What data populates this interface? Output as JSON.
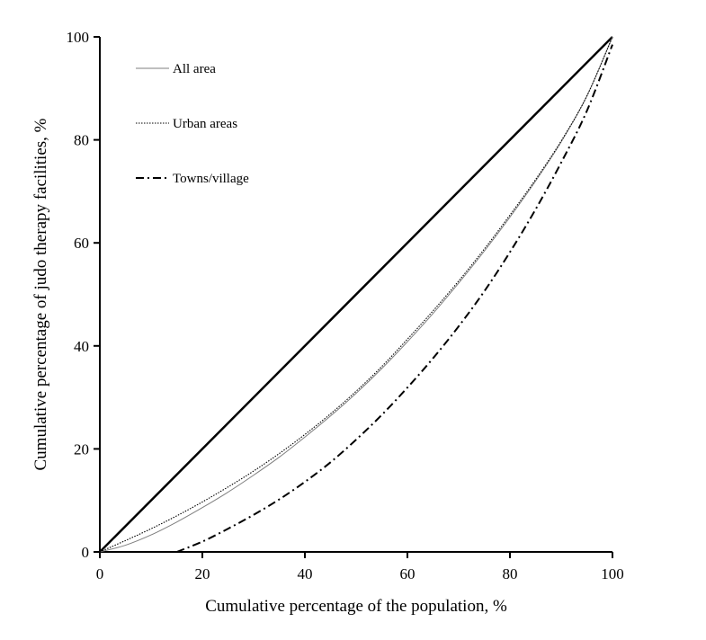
{
  "chart_data": {
    "type": "line",
    "title": "",
    "xlabel": "Cumulative percentage of  the population, %",
    "ylabel": "Cumulative percentage of judo therapy facilities, %",
    "xlim": [
      0,
      100
    ],
    "ylim": [
      0,
      100
    ],
    "xticks": [
      0,
      20,
      40,
      60,
      80,
      100
    ],
    "yticks": [
      0,
      20,
      40,
      60,
      80,
      100
    ],
    "grid": false,
    "legend_position": "top-left",
    "equality_line": {
      "x": [
        0,
        100
      ],
      "y": [
        0,
        100
      ],
      "color": "#000000"
    },
    "series": [
      {
        "name": "All area",
        "style": "solid-thin",
        "color": "#7f7f7f",
        "x": [
          0,
          5,
          10,
          15,
          20,
          25,
          30,
          35,
          40,
          45,
          50,
          55,
          60,
          65,
          70,
          75,
          80,
          85,
          90,
          95,
          100
        ],
        "y": [
          0,
          1.3,
          3.3,
          5.8,
          8.6,
          11.6,
          14.9,
          18.4,
          22.3,
          26.4,
          30.8,
          35.6,
          40.8,
          46.3,
          52.2,
          58.4,
          65.0,
          72.0,
          79.6,
          88.5,
          100
        ]
      },
      {
        "name": "Urban areas",
        "style": "dotted",
        "color": "#000000",
        "x": [
          0,
          5,
          10,
          15,
          20,
          25,
          30,
          35,
          40,
          45,
          50,
          55,
          60,
          65,
          70,
          75,
          80,
          85,
          90,
          95,
          100
        ],
        "y": [
          0,
          2.2,
          4.5,
          7.0,
          9.7,
          12.6,
          15.7,
          19.1,
          22.8,
          26.8,
          31.2,
          36.0,
          41.3,
          46.8,
          52.6,
          58.8,
          65.4,
          72.3,
          79.8,
          88.5,
          100
        ]
      },
      {
        "name": "Towns/village",
        "style": "dash-dot",
        "color": "#000000",
        "x": [
          15,
          20,
          25,
          30,
          35,
          40,
          45,
          50,
          55,
          60,
          65,
          70,
          75,
          80,
          85,
          90,
          95,
          100
        ],
        "y": [
          0,
          2.0,
          4.5,
          7.2,
          10.2,
          13.6,
          17.4,
          21.8,
          26.6,
          31.9,
          37.6,
          43.8,
          50.6,
          58.2,
          66.5,
          75.6,
          85.6,
          98.5
        ]
      }
    ]
  }
}
